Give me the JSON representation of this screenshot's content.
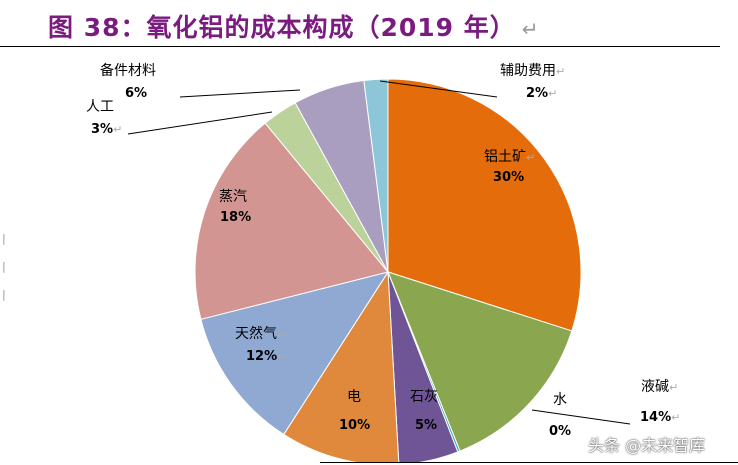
{
  "title": "图 38：氧化铝的成本构成（2019 年）",
  "watermark": "头条 @未来智库",
  "chart_data": {
    "type": "pie",
    "title": "",
    "start_angle": "12 o'clock, clockwise",
    "slices": [
      {
        "label": "铝土矿",
        "value": 30,
        "pct_label": "30%",
        "color": "#E46C0A"
      },
      {
        "label": "液碱",
        "value": 14,
        "pct_label": "14%",
        "color": "#8AA64E"
      },
      {
        "label": "水",
        "value": 0.2,
        "pct_label": "0%",
        "color": "#4BACC6"
      },
      {
        "label": "石灰",
        "value": 5,
        "pct_label": "5%",
        "color": "#6F5596"
      },
      {
        "label": "电",
        "value": 10,
        "pct_label": "10%",
        "color": "#E0893D"
      },
      {
        "label": "天然气",
        "value": 12,
        "pct_label": "12%",
        "color": "#8FA9D2"
      },
      {
        "label": "蒸汽",
        "value": 18,
        "pct_label": "18%",
        "color": "#D39592"
      },
      {
        "label": "人工",
        "value": 3,
        "pct_label": "3%",
        "color": "#BBD39A"
      },
      {
        "label": "备件材料",
        "value": 6,
        "pct_label": "6%",
        "color": "#A99DC0"
      },
      {
        "label": "辅助费用",
        "value": 2,
        "pct_label": "2%",
        "color": "#8EC6D9"
      }
    ]
  }
}
